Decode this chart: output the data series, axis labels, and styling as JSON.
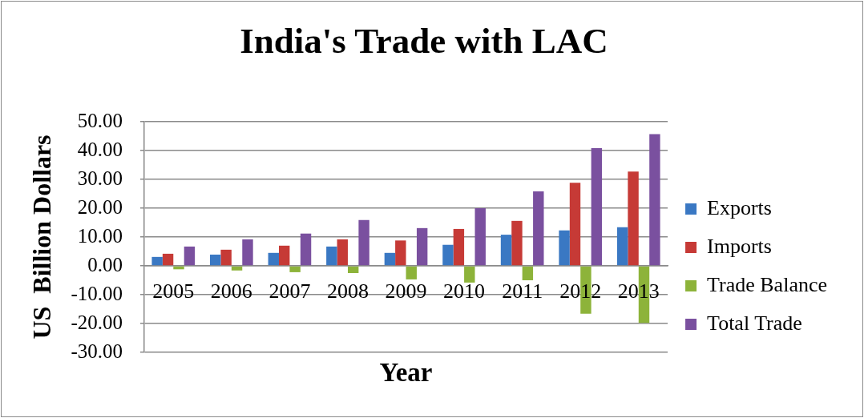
{
  "chart_data": {
    "type": "bar",
    "title": "India's Trade with LAC",
    "xlabel": "Year",
    "ylabel": "US  Billion Dollars",
    "categories": [
      "2005",
      "2006",
      "2007",
      "2008",
      "2009",
      "2010",
      "2011",
      "2012",
      "2013"
    ],
    "series": [
      {
        "name": "Exports",
        "color": "#3a78c3",
        "values": [
          3.1,
          3.9,
          4.5,
          6.7,
          4.5,
          7.3,
          10.8,
          12.3,
          13.4
        ]
      },
      {
        "name": "Imports",
        "color": "#c63a36",
        "values": [
          4.2,
          5.6,
          7.0,
          9.2,
          8.8,
          12.8,
          15.6,
          28.8,
          32.7
        ]
      },
      {
        "name": "Trade Balance",
        "color": "#8db33a",
        "values": [
          -1.2,
          -1.6,
          -2.2,
          -2.5,
          -4.7,
          -5.8,
          -5.0,
          -16.6,
          -19.8
        ]
      },
      {
        "name": "Total Trade",
        "color": "#7a509f",
        "values": [
          6.7,
          9.2,
          11.2,
          15.9,
          13.1,
          20.0,
          25.8,
          40.8,
          45.7
        ]
      }
    ],
    "ylim": [
      -30,
      50
    ],
    "yticks": [
      {
        "value": -30,
        "label": "-30.00"
      },
      {
        "value": -20,
        "label": "-20.00"
      },
      {
        "value": -10,
        "label": "-10.00"
      },
      {
        "value": 0,
        "label": "0.00"
      },
      {
        "value": 10,
        "label": "10.00"
      },
      {
        "value": 20,
        "label": "20.00"
      },
      {
        "value": 30,
        "label": "30.00"
      },
      {
        "value": 40,
        "label": "40.00"
      },
      {
        "value": 50,
        "label": "50.00"
      }
    ],
    "grid": "y",
    "legend": "right"
  }
}
